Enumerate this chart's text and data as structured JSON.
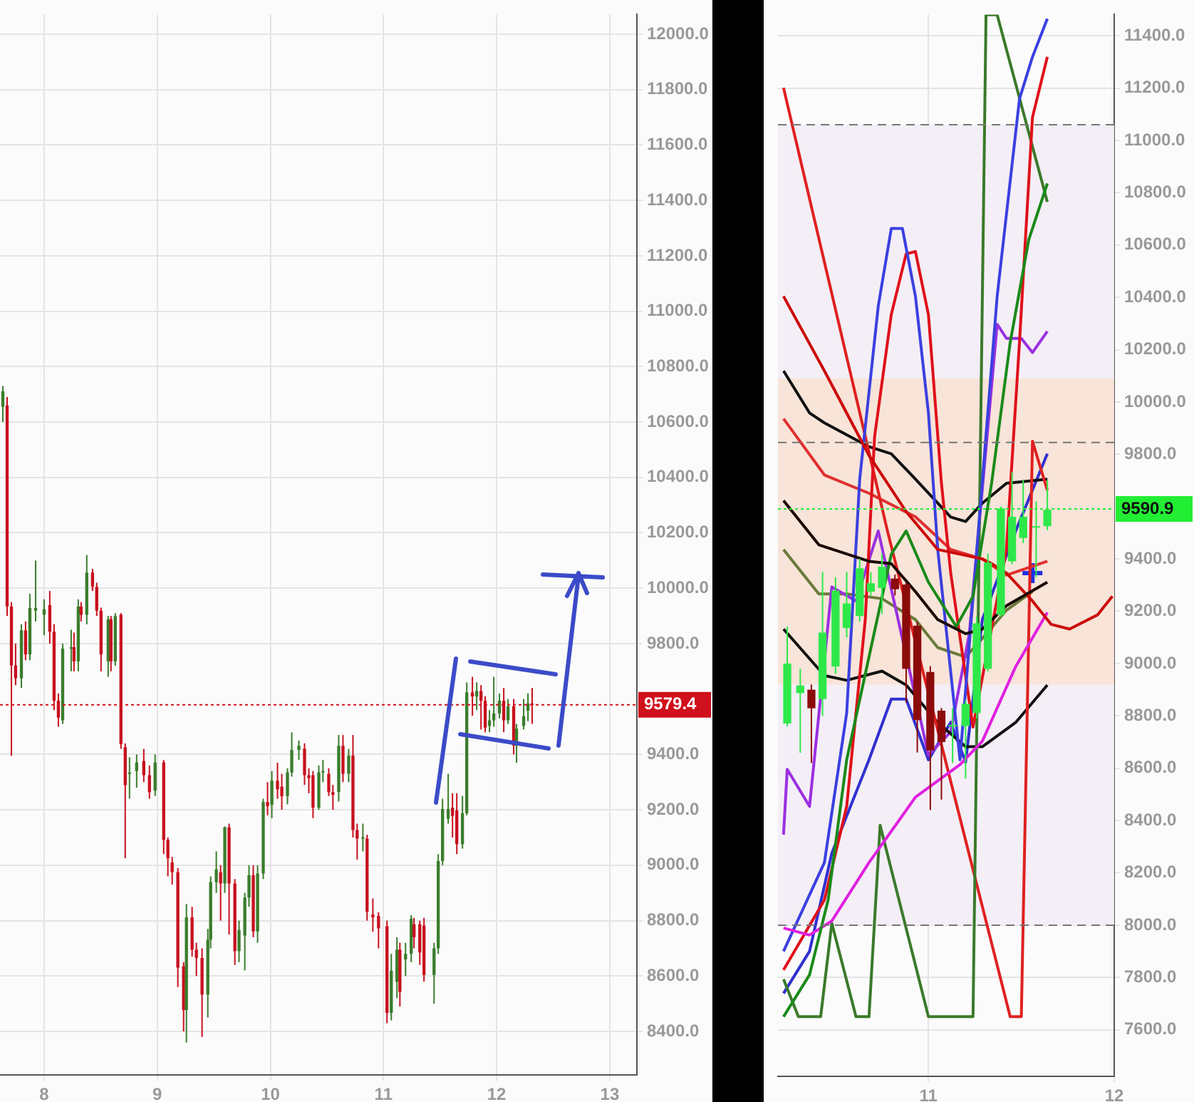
{
  "chart_data": [
    {
      "type": "candlestick",
      "x": [
        7.635,
        7.673,
        7.711,
        7.748,
        7.799,
        7.836,
        7.874,
        7.925,
        8.0,
        8.05,
        8.088,
        8.126,
        8.164,
        8.239,
        8.264,
        8.302,
        8.327,
        8.377,
        8.428,
        8.465,
        8.503,
        8.566,
        8.591,
        8.629,
        8.679,
        8.717,
        8.755,
        8.818,
        8.881,
        8.931,
        8.981,
        9.057,
        9.094,
        9.132,
        9.182,
        9.233,
        9.258,
        9.308,
        9.346,
        9.396,
        9.447,
        9.472,
        9.522,
        9.56,
        9.597,
        9.635,
        9.686,
        9.723,
        9.774,
        9.811,
        9.849,
        9.887,
        9.937,
        9.975,
        10.013,
        10.063,
        10.101,
        10.151,
        10.189,
        10.252,
        10.302,
        10.34,
        10.377,
        10.428,
        10.465,
        10.516,
        10.553,
        10.604,
        10.642,
        10.692,
        10.73,
        10.767,
        10.818,
        10.855,
        10.906,
        10.956,
        11.031,
        11.069,
        11.119,
        11.145,
        11.195,
        11.245,
        11.27,
        11.321,
        11.358,
        11.447,
        11.484,
        11.522,
        11.572,
        11.61,
        11.648,
        11.698,
        11.736,
        11.786,
        11.824,
        11.862,
        11.899,
        11.937,
        11.975,
        12.025,
        12.063,
        12.101,
        12.151,
        12.176,
        12.239,
        12.277,
        12.314
      ],
      "ohlc": [
        [
          10655,
          10730,
          10600,
          10711
        ],
        [
          10660,
          10690,
          9900,
          9934
        ],
        [
          9934,
          9950,
          9395,
          9721
        ],
        [
          9721,
          9800,
          9650,
          9675
        ],
        [
          9675,
          9870,
          9640,
          9848
        ],
        [
          9848,
          9880,
          9740,
          9761
        ],
        [
          9761,
          9980,
          9740,
          9929
        ],
        [
          9919,
          10100,
          9880,
          9929
        ],
        [
          9904,
          9960,
          9830,
          9924
        ],
        [
          9939,
          9990,
          9800,
          9843
        ],
        [
          9843,
          9870,
          9560,
          9594
        ],
        [
          9594,
          9620,
          9500,
          9533
        ],
        [
          9523,
          9800,
          9510,
          9782
        ],
        [
          9782,
          9850,
          9700,
          9787
        ],
        [
          9787,
          9840,
          9700,
          9736
        ],
        [
          9736,
          9960,
          9700,
          9934
        ],
        [
          9934,
          9950,
          9880,
          9904
        ],
        [
          9904,
          10120,
          9870,
          10056
        ],
        [
          10056,
          10070,
          9990,
          10005
        ],
        [
          10005,
          10020,
          9900,
          9919
        ],
        [
          9919,
          9930,
          9700,
          9761
        ],
        [
          9736,
          9900,
          9680,
          9888
        ],
        [
          9888,
          9900,
          9700,
          9736
        ],
        [
          9736,
          9910,
          9720,
          9899
        ],
        [
          9904,
          9910,
          9420,
          9437
        ],
        [
          9426,
          9440,
          9025,
          9289
        ],
        [
          9330,
          9390,
          9240,
          9335
        ],
        [
          9340,
          9400,
          9280,
          9371
        ],
        [
          9376,
          9420,
          9300,
          9325
        ],
        [
          9325,
          9360,
          9240,
          9264
        ],
        [
          9269,
          9400,
          9250,
          9371
        ],
        [
          9371,
          9380,
          9040,
          9091
        ],
        [
          9091,
          9100,
          8960,
          9025
        ],
        [
          9010,
          9030,
          8930,
          8975
        ],
        [
          8975,
          8990,
          8560,
          8630
        ],
        [
          8635,
          8650,
          8400,
          8477
        ],
        [
          8477,
          8860,
          8360,
          8812
        ],
        [
          8812,
          8850,
          8670,
          8695
        ],
        [
          8695,
          8720,
          8600,
          8665
        ],
        [
          8665,
          8700,
          8380,
          8533
        ],
        [
          8533,
          8770,
          8450,
          8731
        ],
        [
          8731,
          8960,
          8700,
          8939
        ],
        [
          8939,
          9050,
          8900,
          8985
        ],
        [
          8975,
          9000,
          8800,
          8934
        ],
        [
          8934,
          9140,
          8900,
          9137
        ],
        [
          9137,
          9150,
          8750,
          8934
        ],
        [
          8934,
          8950,
          8640,
          8690
        ],
        [
          8690,
          8800,
          8650,
          8766
        ],
        [
          8746,
          8900,
          8620,
          8883
        ],
        [
          8883,
          9000,
          8850,
          8964
        ],
        [
          8964,
          9000,
          8740,
          8761
        ],
        [
          8761,
          9000,
          8720,
          8970
        ],
        [
          8970,
          9240,
          8950,
          9228
        ],
        [
          9228,
          9300,
          9180,
          9213
        ],
        [
          9218,
          9340,
          9170,
          9305
        ],
        [
          9305,
          9370,
          9240,
          9274
        ],
        [
          9284,
          9330,
          9200,
          9249
        ],
        [
          9249,
          9350,
          9220,
          9335
        ],
        [
          9335,
          9480,
          9320,
          9416
        ],
        [
          9416,
          9450,
          9380,
          9431
        ],
        [
          9421,
          9440,
          9290,
          9325
        ],
        [
          9325,
          9350,
          9260,
          9315
        ],
        [
          9325,
          9340,
          9170,
          9208
        ],
        [
          9208,
          9360,
          9200,
          9335
        ],
        [
          9335,
          9380,
          9300,
          9340
        ],
        [
          9330,
          9350,
          9250,
          9264
        ],
        [
          9264,
          9290,
          9200,
          9254
        ],
        [
          9264,
          9470,
          9230,
          9431
        ],
        [
          9431,
          9470,
          9300,
          9330
        ],
        [
          9330,
          9420,
          9300,
          9396
        ],
        [
          9396,
          9470,
          9100,
          9127
        ],
        [
          9127,
          9150,
          9020,
          9096
        ],
        [
          9096,
          9150,
          9050,
          9101
        ],
        [
          9096,
          9110,
          8800,
          8832
        ],
        [
          8822,
          8880,
          8760,
          8812
        ],
        [
          8817,
          8830,
          8700,
          8772
        ],
        [
          8780,
          8800,
          8430,
          8467
        ],
        [
          8467,
          8680,
          8440,
          8619
        ],
        [
          8579,
          8740,
          8520,
          8695
        ],
        [
          8695,
          8720,
          8490,
          8543
        ],
        [
          8660,
          8720,
          8600,
          8680
        ],
        [
          8680,
          8820,
          8650,
          8807
        ],
        [
          8787,
          8810,
          8700,
          8740
        ],
        [
          8787,
          8800,
          8640,
          8685
        ],
        [
          8782,
          8810,
          8580,
          8604
        ],
        [
          8604,
          8720,
          8500,
          8700
        ],
        [
          8700,
          9040,
          8680,
          9015
        ],
        [
          9015,
          9240,
          9000,
          9203
        ],
        [
          9168,
          9330,
          9150,
          9203
        ],
        [
          9208,
          9260,
          9100,
          9178
        ],
        [
          9198,
          9260,
          9040,
          9076
        ],
        [
          9076,
          9250,
          9060,
          9188
        ],
        [
          9188,
          9660,
          9180,
          9624
        ],
        [
          9624,
          9680,
          9540,
          9609
        ],
        [
          9609,
          9660,
          9560,
          9629
        ],
        [
          9629,
          9650,
          9490,
          9594
        ],
        [
          9594,
          9610,
          9480,
          9497
        ],
        [
          9503,
          9560,
          9480,
          9523
        ],
        [
          9523,
          9680,
          9500,
          9548
        ],
        [
          9548,
          9620,
          9530,
          9594
        ],
        [
          9594,
          9640,
          9480,
          9523
        ],
        [
          9523,
          9600,
          9510,
          9574
        ],
        [
          9574,
          9600,
          9400,
          9432
        ],
        [
          9432,
          9510,
          9370,
          9493
        ],
        [
          9503,
          9600,
          9490,
          9538
        ],
        [
          9558,
          9620,
          9520,
          9584
        ],
        [
          9584,
          9640,
          9510,
          9579
        ]
      ],
      "colors": [
        "#3a7d2c",
        "#c8101e",
        "#c8101e",
        "#c8101e",
        "#3a7d2c",
        "#c8101e",
        "#3a7d2c",
        "#3a7d2c",
        "#3a7d2c",
        "#c8101e",
        "#c8101e",
        "#c8101e",
        "#3a7d2c",
        "#3a7d2c",
        "#c8101e",
        "#3a7d2c",
        "#c8101e",
        "#3a7d2c",
        "#c8101e",
        "#c8101e",
        "#c8101e",
        "#3a7d2c",
        "#c8101e",
        "#3a7d2c",
        "#c8101e",
        "#c8101e",
        "#3a7d2c",
        "#3a7d2c",
        "#c8101e",
        "#c8101e",
        "#3a7d2c",
        "#c8101e",
        "#c8101e",
        "#c8101e",
        "#c8101e",
        "#c8101e",
        "#3a7d2c",
        "#c8101e",
        "#c8101e",
        "#c8101e",
        "#3a7d2c",
        "#3a7d2c",
        "#3a7d2c",
        "#c8101e",
        "#3a7d2c",
        "#c8101e",
        "#c8101e",
        "#3a7d2c",
        "#3a7d2c",
        "#3a7d2c",
        "#c8101e",
        "#3a7d2c",
        "#3a7d2c",
        "#c8101e",
        "#3a7d2c",
        "#c8101e",
        "#c8101e",
        "#3a7d2c",
        "#3a7d2c",
        "#3a7d2c",
        "#c8101e",
        "#c8101e",
        "#c8101e",
        "#3a7d2c",
        "#3a7d2c",
        "#c8101e",
        "#c8101e",
        "#3a7d2c",
        "#c8101e",
        "#3a7d2c",
        "#c8101e",
        "#c8101e",
        "#3a7d2c",
        "#c8101e",
        "#c8101e",
        "#c8101e",
        "#c8101e",
        "#3a7d2c",
        "#3a7d2c",
        "#c8101e",
        "#3a7d2c",
        "#3a7d2c",
        "#c8101e",
        "#c8101e",
        "#c8101e",
        "#3a7d2c",
        "#3a7d2c",
        "#3a7d2c",
        "#3a7d2c",
        "#c8101e",
        "#c8101e",
        "#3a7d2c",
        "#3a7d2c",
        "#c8101e",
        "#3a7d2c",
        "#c8101e",
        "#c8101e",
        "#3a7d2c",
        "#3a7d2c",
        "#3a7d2c",
        "#c8101e",
        "#3a7d2c",
        "#c8101e",
        "#3a7d2c",
        "#3a7d2c",
        "#3a7d2c",
        "#c8101e"
      ],
      "xlim": [
        7.61,
        13.24
      ],
      "xticks": [
        8,
        9,
        10,
        11,
        12,
        13
      ],
      "ylim": [
        8243,
        12071
      ],
      "yticks": [
        {
          "value": 8400,
          "label": "8400.0"
        },
        {
          "value": 8600,
          "label": "8600.0"
        },
        {
          "value": 8800,
          "label": "8800.0"
        },
        {
          "value": 9000,
          "label": "9000.0"
        },
        {
          "value": 9200,
          "label": "9200.0"
        },
        {
          "value": 9400,
          "label": "9400.0"
        },
        {
          "value": 9800,
          "label": "9800.0"
        },
        {
          "value": 10000,
          "label": "10000.0"
        },
        {
          "value": 10200,
          "label": "10200.0"
        },
        {
          "value": 10400,
          "label": "10400.0"
        },
        {
          "value": 10600,
          "label": "10600.0"
        },
        {
          "value": 10800,
          "label": "10800.0"
        },
        {
          "value": 11000,
          "label": "11000.0"
        },
        {
          "value": 11200,
          "label": "11200.0"
        },
        {
          "value": 11400,
          "label": "11400.0"
        },
        {
          "value": 11600,
          "label": "11600.0"
        },
        {
          "value": 11800,
          "label": "11800.0"
        },
        {
          "value": 12000,
          "label": "12000.0"
        }
      ],
      "ref_lines": [
        {
          "axis": "y",
          "value": 9579.4,
          "label": "9579.4",
          "color": "#d0101c",
          "line_style": "dotted"
        }
      ],
      "grid": true
    },
    {
      "type": "candlestick",
      "x": [
        10.24,
        10.31,
        10.37,
        10.43,
        10.5,
        10.56,
        10.63,
        10.69,
        10.75,
        10.82,
        10.88,
        10.94,
        11.01,
        11.07,
        11.13,
        11.2,
        11.26,
        11.32,
        11.39,
        11.45,
        11.51,
        11.58,
        11.64
      ],
      "ohlc": [
        [
          8771,
          9141,
          8760,
          9000
        ],
        [
          8887,
          8980,
          8659,
          8916
        ],
        [
          8900,
          8920,
          8620,
          8829
        ],
        [
          8864,
          9350,
          8800,
          9118
        ],
        [
          8989,
          9330,
          8960,
          9279
        ],
        [
          9136,
          9350,
          9100,
          9230
        ],
        [
          9182,
          9400,
          9160,
          9364
        ],
        [
          9275,
          9350,
          9260,
          9307
        ],
        [
          9289,
          9420,
          9190,
          9370
        ],
        [
          9325,
          9340,
          9260,
          9284
        ],
        [
          9302,
          9310,
          8850,
          8980
        ],
        [
          9145,
          9160,
          8660,
          8784
        ],
        [
          8968,
          8990,
          8440,
          8668
        ],
        [
          8820,
          8830,
          8480,
          8700
        ],
        [
          8762,
          8830,
          8620,
          8765
        ],
        [
          8761,
          8860,
          8560,
          8846
        ],
        [
          8811,
          9180,
          8790,
          9154
        ],
        [
          8980,
          9420,
          8970,
          9386
        ],
        [
          9186,
          9600,
          9180,
          9593
        ],
        [
          9391,
          9732,
          9380,
          9561
        ],
        [
          9480,
          9700,
          9460,
          9561
        ],
        [
          9520,
          9620,
          9330,
          9525
        ],
        [
          9525,
          9700,
          9510,
          9588
        ]
      ],
      "colors": [
        "#2ee84a",
        "#2ee84a",
        "#8b0b0b",
        "#2ee84a",
        "#2ee84a",
        "#2ee84a",
        "#2ee84a",
        "#2ee84a",
        "#2ee84a",
        "#8b0b0b",
        "#8b0b0b",
        "#8b0b0b",
        "#8b0b0b",
        "#8b0b0b",
        "#2ee84a",
        "#2ee84a",
        "#2ee84a",
        "#2ee84a",
        "#2ee84a",
        "#2ee84a",
        "#2ee84a",
        "#2ee84a",
        "#2ee84a"
      ],
      "series": [
        {
          "type": "line",
          "color": "#1a0a05",
          "x": [
            10.22,
            10.41,
            10.68,
            10.8,
            10.93,
            11.05,
            11.2,
            11.29,
            11.42,
            11.64
          ],
          "values": [
            9623,
            9454,
            9391,
            9382,
            9275,
            9168,
            9114,
            9132,
            9221,
            9311
          ]
        },
        {
          "type": "line",
          "color": "#cc0a0a",
          "x": [
            10.22,
            10.44,
            10.68,
            10.88,
            11.05,
            11.29,
            11.34,
            11.42,
            11.56,
            11.66,
            11.76,
            11.91,
            11.99
          ],
          "values": [
            10404,
            10119,
            9796,
            9581,
            9436,
            9400,
            9382,
            9346,
            9239,
            9150,
            9132,
            9186,
            9257
          ]
        },
        {
          "type": "line",
          "color": "#1a8a1a",
          "x": [
            10.22,
            10.36,
            10.46,
            10.56,
            10.68,
            10.8,
            10.88,
            11.0,
            11.15,
            11.24,
            11.34,
            11.44,
            11.54,
            11.64
          ],
          "values": [
            7650,
            7810,
            8096,
            8632,
            9025,
            9418,
            9507,
            9311,
            9141,
            9257,
            9689,
            10227,
            10620,
            10835
          ]
        },
        {
          "type": "line",
          "color": "#e020e0",
          "x": [
            10.22,
            10.36,
            10.48,
            10.68,
            10.93,
            11.17,
            11.29,
            11.47,
            11.64
          ],
          "values": [
            7989,
            7962,
            8016,
            8239,
            8489,
            8614,
            8703,
            8989,
            9195
          ]
        },
        {
          "type": "line",
          "color": "#3a40e0",
          "x": [
            10.22,
            10.44,
            10.56,
            10.63,
            10.66,
            10.73,
            10.8,
            10.86,
            10.93,
            11.0,
            11.05,
            11.17,
            11.37,
            11.49,
            11.56,
            11.64
          ],
          "values": [
            7900,
            8239,
            8811,
            9704,
            9904,
            10367,
            10663,
            10663,
            10404,
            9958,
            9436,
            8632,
            10404,
            11158,
            11319,
            11465
          ]
        },
        {
          "type": "line",
          "color": "#e0101a",
          "x": [
            10.22,
            10.44,
            10.56,
            10.66,
            10.71,
            10.8,
            10.88,
            10.93,
            11.0,
            11.07,
            11.12,
            11.24,
            11.32,
            11.42,
            11.49,
            11.56,
            11.64
          ],
          "values": [
            7829,
            8096,
            8454,
            9168,
            9866,
            10334,
            10566,
            10575,
            10334,
            9689,
            9346,
            8757,
            null,
            9436,
            10227,
            11088,
            11319
          ]
        },
        {
          "type": "line",
          "color": "#3a7a2a",
          "x": [
            10.22,
            10.3,
            10.42,
            10.48,
            10.61,
            10.68,
            10.74,
            11.0,
            11.24,
            11.31,
            11.37,
            11.64
          ],
          "values": [
            7793,
            7650,
            7650,
            8007,
            7650,
            7650,
            8382,
            7650,
            7650,
            11480,
            11480,
            10765
          ]
        },
        {
          "type": "line",
          "color": "#e02020",
          "x": [
            10.22,
            10.78,
            11.44,
            11.5,
            11.56,
            11.64
          ],
          "values": [
            11201,
            9505,
            7650,
            7650,
            9850,
            9662
          ]
        },
        {
          "type": "line",
          "color": "#111111",
          "x": [
            10.22,
            10.36,
            10.44,
            10.68,
            10.8,
            10.93,
            11.12,
            11.2,
            11.29,
            11.42,
            11.64
          ],
          "values": [
            10119,
            9958,
            9920,
            9829,
            9802,
            9705,
            9560,
            9543,
            9613,
            9689,
            9705
          ]
        },
        {
          "type": "line",
          "color": "#111111",
          "x": [
            10.22,
            10.44,
            10.56,
            10.75,
            10.88,
            11.05,
            11.2,
            11.29,
            11.47,
            11.64
          ],
          "values": [
            9132,
            8954,
            8936,
            8971,
            8918,
            8775,
            8682,
            8682,
            8775,
            8918
          ]
        },
        {
          "type": "line",
          "color": "#9a30e0",
          "x": [
            10.22,
            10.24,
            10.36,
            10.48,
            10.61,
            10.73,
            10.88,
            11.0,
            11.12,
            11.22,
            11.37,
            11.42,
            11.5,
            11.56,
            11.64
          ],
          "values": [
            8346,
            8596,
            8454,
            9293,
            9239,
            9507,
            null,
            8650,
            8739,
            9114,
            10297,
            10243,
            10243,
            10189,
            10270
          ]
        },
        {
          "type": "line",
          "color": "#3030d0",
          "x": [
            10.22,
            10.36,
            10.48,
            10.68,
            10.8,
            10.88,
            11.0,
            11.12,
            11.2,
            11.29,
            11.47,
            11.64
          ],
          "values": [
            7739,
            7900,
            8275,
            8632,
            8864,
            8864,
            8632,
            8775,
            8623,
            9168,
            9507,
            9802
          ]
        },
        {
          "type": "line",
          "color": "#e03030",
          "x": [
            10.22,
            10.44,
            10.68,
            10.93,
            11.12,
            11.29,
            11.42,
            11.64
          ],
          "values": [
            9936,
            9721,
            9651,
            9561,
            9436,
            9400,
            9338,
            9391
          ]
        },
        {
          "type": "line",
          "color": "#6a7a3a",
          "x": [
            10.22,
            10.41,
            10.56,
            10.75,
            10.93,
            11.05,
            11.2,
            11.29,
            11.42,
            11.56
          ],
          "values": [
            9436,
            9266,
            9266,
            9248,
            9168,
            9061,
            9025,
            9096,
            9204,
            9275
          ]
        },
        {
          "type": "scatter",
          "color": "#2030e0",
          "marker": "cross",
          "x": [
            11.56
          ],
          "values": [
            9346
          ]
        }
      ],
      "xlim": [
        10.19,
        12
      ],
      "xticks": [
        11,
        12
      ],
      "ylim": [
        7422,
        11481
      ],
      "yticks": [
        {
          "value": 7600,
          "label": "7600.0"
        },
        {
          "value": 7800,
          "label": "7800.0"
        },
        {
          "value": 8000,
          "label": "8000.0"
        },
        {
          "value": 8200,
          "label": "8200.0"
        },
        {
          "value": 8400,
          "label": "8400.0"
        },
        {
          "value": 8600,
          "label": "8600.0"
        },
        {
          "value": 8800,
          "label": "8800.0"
        },
        {
          "value": 9000,
          "label": "9000.0"
        },
        {
          "value": 9200,
          "label": "9200.0"
        },
        {
          "value": 9400,
          "label": "9400.0"
        },
        {
          "value": 9800,
          "label": "9800.0"
        },
        {
          "value": 10000,
          "label": "10000.0"
        },
        {
          "value": 10200,
          "label": "10200.0"
        },
        {
          "value": 10400,
          "label": "10400.0"
        },
        {
          "value": 10600,
          "label": "10600.0"
        },
        {
          "value": 10800,
          "label": "10800.0"
        },
        {
          "value": 11000,
          "label": "11000.0"
        },
        {
          "value": 11200,
          "label": "11200.0"
        },
        {
          "value": 11400,
          "label": "11400.0"
        }
      ],
      "ref_lines": [
        {
          "axis": "y",
          "value": 11060,
          "color": "#777777",
          "line_style": "dashed"
        },
        {
          "axis": "y",
          "value": 9845,
          "color": "#777777",
          "line_style": "dashed"
        },
        {
          "axis": "y",
          "value": 8000,
          "color": "#777777",
          "line_style": "dashed"
        },
        {
          "axis": "y",
          "value": 9590.9,
          "label": "9590.9",
          "color": "#22ee33",
          "line_style": "dotted"
        }
      ],
      "bands": [
        {
          "axis": "y",
          "from": 8000,
          "to": 11060,
          "color": "#f4eef6"
        },
        {
          "axis": "y",
          "from": 8920,
          "to": 10090,
          "color": "#f8e4d8"
        }
      ],
      "grid": true
    }
  ]
}
